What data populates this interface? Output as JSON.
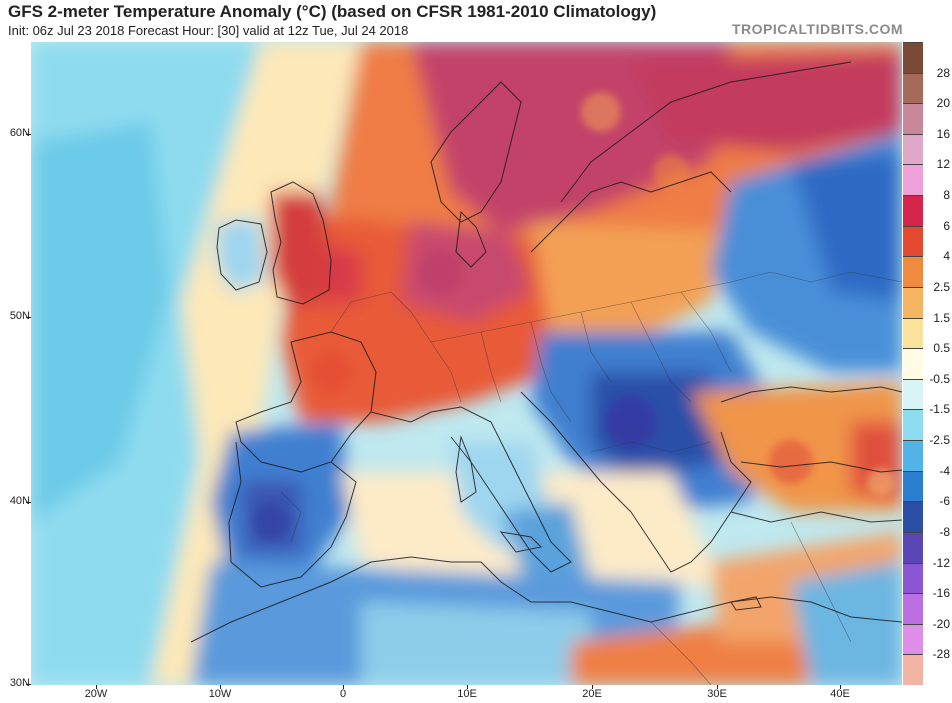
{
  "header": {
    "title": "GFS 2-meter Temperature Anomaly (°C) (based on CFSR 1981-2010 Climatology)",
    "subtitle": "Init: 06z Jul 23 2018   Forecast Hour: [30]   valid at 12z Tue, Jul 24 2018",
    "brand": "TROPICALTIDBITS.COM"
  },
  "map": {
    "lat_labels": [
      "60N",
      "50N",
      "40N",
      "30N"
    ],
    "lon_labels": [
      "20W",
      "10W",
      "0",
      "10E",
      "20E",
      "30E",
      "40E"
    ]
  },
  "colorbar": {
    "labels": [
      "28",
      "20",
      "16",
      "12",
      "8",
      "6",
      "4",
      "2.5",
      "1.5",
      "0.5",
      "-0.5",
      "-1.5",
      "-2.5",
      "-4",
      "-6",
      "-8",
      "-12",
      "-16",
      "-20",
      "-28"
    ],
    "colors": [
      "#7a4a36",
      "#a56a59",
      "#c9889a",
      "#e0a8c8",
      "#f0a0d8",
      "#d6254a",
      "#e34a30",
      "#f08a3e",
      "#f6b563",
      "#fae29a",
      "#fffbe4",
      "#d8f4f4",
      "#8ddcef",
      "#52b3e6",
      "#2b7ed0",
      "#2a4fa5",
      "#5a46b5",
      "#8a56d4",
      "#bb6fe2",
      "#dd8ee8",
      "#f3b3a5"
    ]
  }
}
